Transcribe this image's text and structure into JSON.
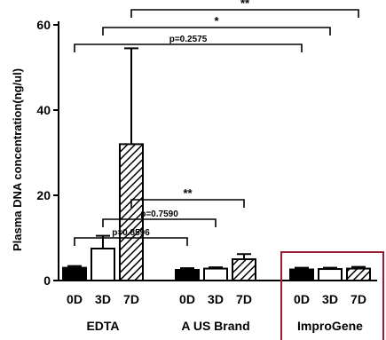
{
  "chart_data": {
    "type": "bar",
    "title": "",
    "ylabel": "Plasma DNA concentration(ng/ul)",
    "xlabel": "",
    "ylim": [
      0,
      60
    ],
    "yticks": [
      0,
      20,
      40,
      60
    ],
    "groups": [
      {
        "name": "EDTA",
        "bars": [
          {
            "label": "0D",
            "value": 3.0,
            "error": 0.4,
            "pattern": "solid"
          },
          {
            "label": "3D",
            "value": 7.5,
            "error": 3.0,
            "pattern": "open"
          },
          {
            "label": "7D",
            "value": 32.0,
            "error": 22.5,
            "pattern": "hatch"
          }
        ]
      },
      {
        "name": "A US Brand",
        "bars": [
          {
            "label": "0D",
            "value": 2.5,
            "error": 0.4,
            "pattern": "solid"
          },
          {
            "label": "3D",
            "value": 2.8,
            "error": 0.3,
            "pattern": "open"
          },
          {
            "label": "7D",
            "value": 5.0,
            "error": 1.2,
            "pattern": "hatch"
          }
        ]
      },
      {
        "name": "ImproGene",
        "bars": [
          {
            "label": "0D",
            "value": 2.6,
            "error": 0.4,
            "pattern": "solid"
          },
          {
            "label": "3D",
            "value": 2.7,
            "error": 0.3,
            "pattern": "open"
          },
          {
            "label": "7D",
            "value": 2.8,
            "error": 0.4,
            "pattern": "hatch"
          }
        ]
      }
    ],
    "comparisons": [
      {
        "from": [
          0,
          0
        ],
        "to": [
          1,
          0
        ],
        "label": "p=0.8596"
      },
      {
        "from": [
          0,
          1
        ],
        "to": [
          1,
          1
        ],
        "label": "p=0.7590"
      },
      {
        "from": [
          0,
          2
        ],
        "to": [
          1,
          2
        ],
        "label": "**"
      },
      {
        "from": [
          0,
          0
        ],
        "to": [
          2,
          0
        ],
        "label": "p=0.2575"
      },
      {
        "from": [
          0,
          1
        ],
        "to": [
          2,
          1
        ],
        "label": "*"
      },
      {
        "from": [
          0,
          2
        ],
        "to": [
          2,
          2
        ],
        "label": "**"
      }
    ],
    "highlight_group": 2,
    "colors": {
      "bar": "#000000",
      "highlight_box": "#9b1b30"
    }
  }
}
